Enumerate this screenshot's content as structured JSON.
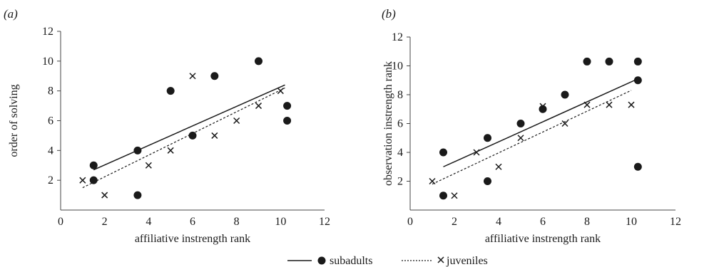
{
  "chart_data": [
    {
      "type": "scatter",
      "panel_label": "(a)",
      "xlabel": "affiliative instrength rank",
      "ylabel": "order of solving",
      "xlim": [
        0,
        12
      ],
      "ylim": [
        0,
        12
      ],
      "x_ticks": [
        0,
        2,
        4,
        6,
        8,
        10,
        12
      ],
      "y_ticks": [
        2,
        4,
        6,
        8,
        10,
        12
      ],
      "series": [
        {
          "name": "subadults",
          "marker": "filled-circle",
          "line_style": "solid",
          "points": [
            [
              1.5,
              2
            ],
            [
              1.5,
              3
            ],
            [
              3.5,
              1
            ],
            [
              3.5,
              4
            ],
            [
              5,
              8
            ],
            [
              6,
              5
            ],
            [
              7,
              9
            ],
            [
              9,
              10
            ],
            [
              10.3,
              7
            ],
            [
              10.3,
              6
            ]
          ],
          "trend": [
            [
              1.5,
              2.7
            ],
            [
              10.2,
              8.4
            ]
          ]
        },
        {
          "name": "juveniles",
          "marker": "x-cross",
          "line_style": "dashed",
          "points": [
            [
              1,
              2
            ],
            [
              2,
              1
            ],
            [
              4,
              3
            ],
            [
              5,
              4
            ],
            [
              6,
              9
            ],
            [
              7,
              5
            ],
            [
              8,
              6
            ],
            [
              9,
              7
            ],
            [
              10,
              8
            ]
          ],
          "trend": [
            [
              1,
              1.5
            ],
            [
              10.2,
              8.2
            ]
          ]
        }
      ]
    },
    {
      "type": "scatter",
      "panel_label": "(b)",
      "xlabel": "affiliative instrength rank",
      "ylabel": "observation instrength rank",
      "xlim": [
        0,
        12
      ],
      "ylim": [
        0,
        12
      ],
      "x_ticks": [
        0,
        2,
        4,
        6,
        8,
        10,
        12
      ],
      "y_ticks": [
        2,
        4,
        6,
        8,
        10,
        12
      ],
      "series": [
        {
          "name": "subadults",
          "marker": "filled-circle",
          "line_style": "solid",
          "points": [
            [
              1.5,
              1
            ],
            [
              1.5,
              4
            ],
            [
              3.5,
              5
            ],
            [
              3.5,
              2
            ],
            [
              5,
              6
            ],
            [
              6,
              7
            ],
            [
              7,
              8
            ],
            [
              8,
              10.3
            ],
            [
              9,
              10.3
            ],
            [
              10.3,
              10.3
            ],
            [
              10.3,
              9
            ],
            [
              10.3,
              3
            ]
          ],
          "trend": [
            [
              1.5,
              3
            ],
            [
              10.3,
              9.1
            ]
          ]
        },
        {
          "name": "juveniles",
          "marker": "x-cross",
          "line_style": "dashed",
          "points": [
            [
              1,
              2
            ],
            [
              2,
              1
            ],
            [
              3,
              4
            ],
            [
              4,
              3
            ],
            [
              5,
              5
            ],
            [
              6,
              7.2
            ],
            [
              7,
              6
            ],
            [
              8,
              7.3
            ],
            [
              9,
              7.3
            ],
            [
              10,
              7.3
            ]
          ],
          "trend": [
            [
              1,
              1.8
            ],
            [
              10,
              8.3
            ]
          ]
        }
      ]
    }
  ],
  "legend": {
    "placement": "bottom-center",
    "items": [
      {
        "label": "subadults",
        "marker": "filled-circle",
        "line_style": "solid"
      },
      {
        "label": "juveniles",
        "marker": "x-cross",
        "line_style": "dashed"
      }
    ]
  },
  "colors": {
    "ink": "#1a1a1a",
    "axis": "#444444"
  }
}
